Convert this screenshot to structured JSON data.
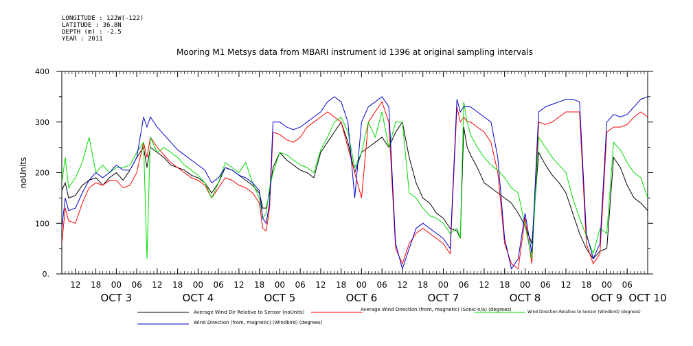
{
  "meta": {
    "longitude": "LONGITUDE : 122W(-122)",
    "latitude": "LATITUDE : 36.8N",
    "depth": "DEPTH (m) : -2.5",
    "year": "YEAR : 2011"
  },
  "chart_data": {
    "type": "line",
    "title": "Mooring M1 Metsys data from MBARI instrument id 1396 at original sampling intervals",
    "ylabel": "noUnits",
    "xlabel": "",
    "ylim": [
      0,
      400
    ],
    "xlim": [
      8,
      180
    ],
    "yticks": [
      0,
      100,
      200,
      300,
      400
    ],
    "ytick_labels": [
      "0.",
      "100",
      "200",
      "300",
      "400"
    ],
    "x_units": "hours since OCT 3 00:00",
    "xticks": [
      12,
      18,
      24,
      30,
      36,
      42,
      48,
      54,
      60,
      66,
      72,
      78,
      84,
      90,
      96,
      102,
      108,
      114,
      120,
      126,
      132,
      138,
      144,
      150,
      156,
      162,
      168,
      174
    ],
    "xtick_labels": [
      "12",
      "18",
      "00",
      "06",
      "12",
      "18",
      "00",
      "06",
      "12",
      "18",
      "00",
      "06",
      "12",
      "18",
      "00",
      "06",
      "12",
      "18",
      "00",
      "06",
      "12",
      "18",
      "00",
      "06",
      "12",
      "18",
      "00",
      "06"
    ],
    "day_labels": [
      {
        "x": 24,
        "text": "OCT  3"
      },
      {
        "x": 48,
        "text": "OCT  4"
      },
      {
        "x": 72,
        "text": "OCT  5"
      },
      {
        "x": 96,
        "text": "OCT  6"
      },
      {
        "x": 120,
        "text": "OCT  7"
      },
      {
        "x": 144,
        "text": "OCT  8"
      },
      {
        "x": 168,
        "text": "OCT  9"
      },
      {
        "x": 180,
        "text": "OCT 10"
      }
    ],
    "legend": {
      "placement": "bottom",
      "columns": 3
    },
    "series": [
      {
        "name": "Average Wind Dir Relative to Sensor (noUnits)",
        "color": "#000000",
        "x": [
          8,
          9,
          10,
          12,
          14,
          16,
          18,
          20,
          22,
          24,
          26,
          28,
          30,
          32,
          33,
          34,
          36,
          38,
          40,
          42,
          44,
          46,
          48,
          50,
          52,
          54,
          56,
          58,
          60,
          62,
          64,
          66,
          67,
          68,
          69,
          70,
          72,
          74,
          76,
          78,
          80,
          82,
          84,
          86,
          88,
          90,
          92,
          94,
          96,
          98,
          100,
          102,
          104,
          106,
          108,
          110,
          112,
          114,
          116,
          118,
          120,
          122,
          124,
          125,
          126,
          127,
          128,
          130,
          132,
          134,
          136,
          138,
          140,
          142,
          144,
          146,
          148,
          150,
          152,
          154,
          156,
          158,
          160,
          162,
          164,
          166,
          168,
          170,
          172,
          174,
          176,
          178,
          180
        ],
        "y": [
          165,
          180,
          150,
          155,
          175,
          185,
          190,
          175,
          190,
          200,
          185,
          205,
          230,
          250,
          210,
          250,
          240,
          230,
          215,
          210,
          205,
          195,
          190,
          180,
          160,
          180,
          210,
          205,
          195,
          185,
          175,
          160,
          130,
          130,
          160,
          210,
          240,
          225,
          215,
          205,
          200,
          190,
          240,
          260,
          280,
          300,
          260,
          200,
          240,
          250,
          260,
          270,
          250,
          280,
          300,
          230,
          180,
          150,
          140,
          120,
          110,
          90,
          85,
          70,
          290,
          250,
          235,
          210,
          180,
          170,
          160,
          150,
          140,
          120,
          95,
          60,
          240,
          215,
          195,
          180,
          160,
          120,
          80,
          50,
          30,
          45,
          50,
          230,
          210,
          175,
          150,
          140,
          125
        ]
      },
      {
        "name": "Average Wind Direction (from, magnetic) (Sonic-n/a) (degrees)",
        "color": "#ff0000",
        "x": [
          8,
          9,
          10,
          12,
          14,
          16,
          18,
          20,
          22,
          24,
          26,
          28,
          30,
          32,
          33,
          34,
          36,
          38,
          40,
          42,
          44,
          46,
          48,
          50,
          52,
          54,
          56,
          58,
          60,
          62,
          64,
          66,
          67,
          68,
          69,
          70,
          72,
          74,
          76,
          78,
          80,
          82,
          84,
          86,
          88,
          90,
          92,
          94,
          96,
          98,
          100,
          102,
          104,
          106,
          108,
          110,
          112,
          114,
          116,
          118,
          120,
          122,
          124,
          125,
          126,
          127,
          128,
          130,
          132,
          134,
          136,
          138,
          140,
          142,
          144,
          146,
          148,
          150,
          152,
          154,
          156,
          158,
          160,
          162,
          164,
          166,
          168,
          170,
          172,
          174,
          176,
          178,
          180
        ],
        "y": [
          60,
          130,
          105,
          100,
          140,
          170,
          180,
          175,
          185,
          185,
          170,
          175,
          200,
          260,
          230,
          270,
          250,
          235,
          220,
          210,
          200,
          190,
          185,
          175,
          150,
          170,
          190,
          185,
          175,
          170,
          160,
          140,
          90,
          85,
          130,
          280,
          275,
          265,
          260,
          270,
          290,
          300,
          310,
          320,
          310,
          300,
          250,
          200,
          150,
          300,
          320,
          340,
          300,
          50,
          20,
          60,
          80,
          90,
          80,
          70,
          60,
          40,
          330,
          300,
          310,
          300,
          300,
          290,
          280,
          260,
          200,
          60,
          20,
          10,
          110,
          20,
          300,
          295,
          300,
          310,
          320,
          320,
          320,
          60,
          20,
          40,
          280,
          290,
          290,
          295,
          310,
          320,
          310
        ]
      },
      {
        "name": "Wind Direction Relative to Sensor (Windbird) (degrees)",
        "color": "#00dd00",
        "x": [
          8,
          9,
          10,
          12,
          14,
          16,
          18,
          20,
          22,
          24,
          26,
          28,
          30,
          32,
          33,
          34,
          36,
          38,
          40,
          42,
          44,
          46,
          48,
          50,
          52,
          54,
          56,
          58,
          60,
          62,
          64,
          66,
          67,
          68,
          69,
          70,
          72,
          74,
          76,
          78,
          80,
          82,
          84,
          86,
          88,
          90,
          92,
          94,
          96,
          98,
          100,
          102,
          104,
          106,
          108,
          110,
          112,
          114,
          116,
          118,
          120,
          122,
          124,
          125,
          126,
          127,
          128,
          130,
          132,
          134,
          136,
          138,
          140,
          142,
          144,
          146,
          148,
          150,
          152,
          154,
          156,
          158,
          160,
          162,
          164,
          166,
          168,
          170,
          172,
          174,
          176,
          178,
          180
        ],
        "y": [
          180,
          230,
          170,
          190,
          220,
          270,
          200,
          215,
          200,
          210,
          210,
          215,
          240,
          260,
          30,
          270,
          240,
          250,
          240,
          230,
          215,
          205,
          195,
          180,
          150,
          180,
          220,
          210,
          200,
          220,
          180,
          150,
          110,
          120,
          170,
          200,
          240,
          235,
          225,
          215,
          210,
          200,
          245,
          270,
          300,
          310,
          280,
          210,
          240,
          300,
          270,
          320,
          250,
          300,
          300,
          160,
          150,
          130,
          115,
          110,
          100,
          80,
          90,
          70,
          340,
          300,
          275,
          250,
          230,
          215,
          205,
          190,
          170,
          160,
          95,
          30,
          270,
          250,
          230,
          215,
          200,
          150,
          110,
          75,
          40,
          90,
          80,
          260,
          245,
          220,
          200,
          190,
          150
        ]
      },
      {
        "name": "Wind Direction (from, magnetic) (Windbird) (degrees)",
        "color": "#0000cc",
        "x": [
          8,
          9,
          10,
          12,
          14,
          16,
          18,
          20,
          22,
          24,
          26,
          28,
          30,
          32,
          33,
          34,
          36,
          38,
          40,
          42,
          44,
          46,
          48,
          50,
          52,
          54,
          56,
          58,
          60,
          62,
          64,
          66,
          67,
          68,
          69,
          70,
          72,
          74,
          76,
          78,
          80,
          82,
          84,
          86,
          88,
          90,
          92,
          94,
          96,
          98,
          100,
          102,
          104,
          106,
          108,
          110,
          112,
          114,
          116,
          118,
          120,
          122,
          124,
          125,
          126,
          127,
          128,
          130,
          132,
          134,
          136,
          138,
          140,
          142,
          144,
          146,
          148,
          150,
          152,
          154,
          156,
          158,
          160,
          162,
          164,
          166,
          168,
          170,
          172,
          174,
          176,
          178,
          180
        ],
        "y": [
          90,
          150,
          125,
          130,
          160,
          185,
          200,
          190,
          200,
          215,
          205,
          205,
          230,
          310,
          290,
          310,
          290,
          275,
          260,
          245,
          235,
          225,
          215,
          205,
          180,
          190,
          210,
          205,
          195,
          190,
          180,
          165,
          110,
          100,
          140,
          300,
          300,
          290,
          285,
          290,
          300,
          310,
          320,
          340,
          350,
          340,
          300,
          150,
          300,
          330,
          340,
          350,
          330,
          60,
          10,
          50,
          90,
          100,
          90,
          80,
          70,
          50,
          345,
          320,
          330,
          330,
          330,
          320,
          310,
          300,
          230,
          70,
          10,
          30,
          120,
          40,
          320,
          330,
          335,
          340,
          345,
          345,
          340,
          80,
          30,
          60,
          300,
          315,
          310,
          315,
          330,
          345,
          350
        ]
      }
    ]
  }
}
